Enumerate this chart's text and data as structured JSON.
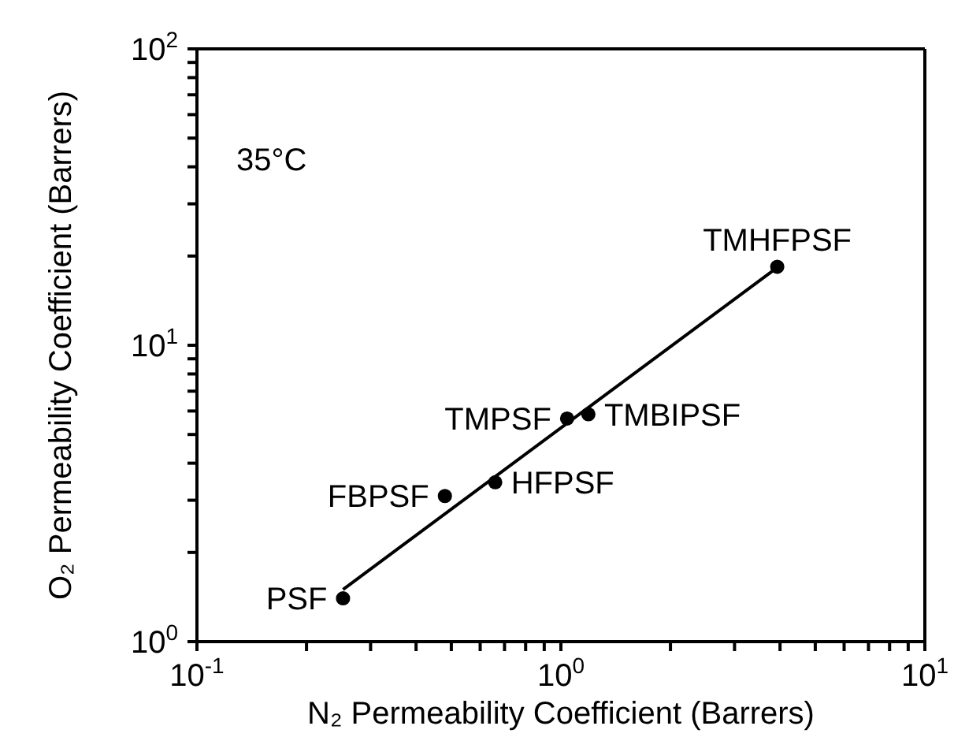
{
  "chart_data": {
    "type": "scatter",
    "xlabel": "N₂ Permeability Coefficient (Barrers)",
    "ylabel": "O₂ Permeability Coefficient (Barrers)",
    "log": "xy",
    "marker": "circle",
    "xlim": [
      0.1,
      10
    ],
    "ylim": [
      1,
      100
    ],
    "xticks": [
      {
        "value": 0.1,
        "label": "10$^{-1}$"
      },
      {
        "value": 0.2,
        "label": null
      },
      {
        "value": 0.3,
        "label": null
      },
      {
        "value": 0.4,
        "label": null
      },
      {
        "value": 0.5,
        "label": null
      },
      {
        "value": 0.6,
        "label": null
      },
      {
        "value": 0.7,
        "label": null
      },
      {
        "value": 0.8,
        "label": null
      },
      {
        "value": 0.9,
        "label": null
      },
      {
        "value": 1,
        "label": "10$^{0}$"
      },
      {
        "value": 2,
        "label": null
      },
      {
        "value": 3,
        "label": null
      },
      {
        "value": 4,
        "label": null
      },
      {
        "value": 5,
        "label": null
      },
      {
        "value": 6,
        "label": null
      },
      {
        "value": 7,
        "label": null
      },
      {
        "value": 8,
        "label": null
      },
      {
        "value": 9,
        "label": null
      },
      {
        "value": 10,
        "label": "10$^{1}$"
      }
    ],
    "yticks": [
      {
        "value": 1,
        "label": "10$^{0}$"
      },
      {
        "value": 2,
        "label": null
      },
      {
        "value": 3,
        "label": null
      },
      {
        "value": 4,
        "label": null
      },
      {
        "value": 5,
        "label": null
      },
      {
        "value": 6,
        "label": null
      },
      {
        "value": 7,
        "label": null
      },
      {
        "value": 8,
        "label": null
      },
      {
        "value": 9,
        "label": null
      },
      {
        "value": 10,
        "label": "10$^{1}$"
      },
      {
        "value": 20,
        "label": null
      },
      {
        "value": 30,
        "label": null
      },
      {
        "value": 40,
        "label": null
      },
      {
        "value": 50,
        "label": null
      },
      {
        "value": 60,
        "label": null
      },
      {
        "value": 70,
        "label": null
      },
      {
        "value": 80,
        "label": null
      },
      {
        "value": 90,
        "label": null
      },
      {
        "value": 100,
        "label": "10$^{2}$"
      }
    ],
    "annotations": [
      "35°C",
      {
        "text": "PSF",
        "x": 0.252,
        "y": 1.4
      },
      {
        "text": "FBPSF",
        "x": 0.48,
        "y": 3.1
      },
      {
        "text": "HFPSF",
        "x": 0.66,
        "y": 3.45
      },
      {
        "text": "TMPSF",
        "x": 1.04,
        "y": 5.66
      },
      {
        "text": "TMBIPSF",
        "x": 1.19,
        "y": 5.85
      },
      {
        "text": "TMHFPSF",
        "x": 3.93,
        "y": 18.4
      }
    ],
    "series": [
      {
        "type": "scatter",
        "color": "#000000",
        "x": [
          0.252,
          0.48,
          0.66,
          1.04,
          1.19,
          3.93
        ],
        "values": [
          1.4,
          3.1,
          3.45,
          5.66,
          5.85,
          18.4
        ]
      },
      {
        "type": "line",
        "color": "#000000",
        "marker": "none",
        "x": [
          0.252,
          3.93
        ],
        "values": [
          1.5,
          18.3
        ]
      }
    ]
  }
}
